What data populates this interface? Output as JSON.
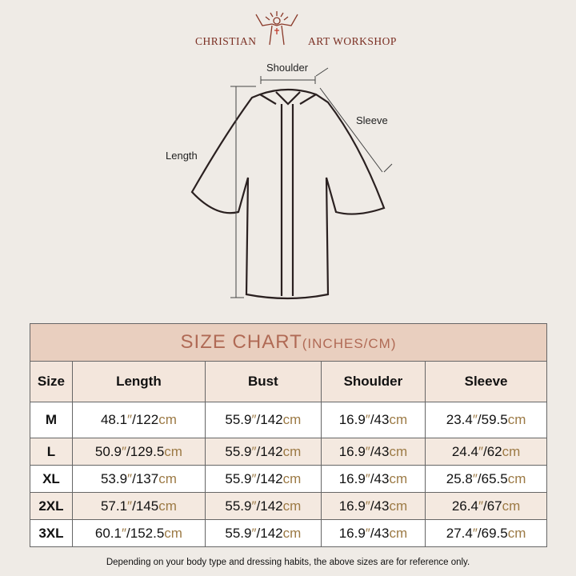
{
  "logo": {
    "left": "CHRISTIAN",
    "right": "ART WORKSHOP"
  },
  "diagram": {
    "shoulder": "Shoulder",
    "sleeve": "Sleeve",
    "length": "Length"
  },
  "table": {
    "title": "SIZE CHART",
    "title_units": "(INCHES/CM)",
    "headers": [
      "Size",
      "Length",
      "Bust",
      "Shoulder",
      "Sleeve"
    ],
    "rows": [
      {
        "size": "M",
        "cells": [
          [
            "48.1",
            "122"
          ],
          [
            "55.9",
            "142"
          ],
          [
            "16.9",
            "43"
          ],
          [
            "23.4",
            "59.5"
          ]
        ]
      },
      {
        "size": "L",
        "cells": [
          [
            "50.9",
            "129.5"
          ],
          [
            "55.9",
            "142"
          ],
          [
            "16.9",
            "43"
          ],
          [
            "24.4",
            "62"
          ]
        ]
      },
      {
        "size": "XL",
        "cells": [
          [
            "53.9",
            "137"
          ],
          [
            "55.9",
            "142"
          ],
          [
            "16.9",
            "43"
          ],
          [
            "25.8",
            "65.5"
          ]
        ]
      },
      {
        "size": "2XL",
        "cells": [
          [
            "57.1",
            "145"
          ],
          [
            "55.9",
            "142"
          ],
          [
            "16.9",
            "43"
          ],
          [
            "26.4",
            "67"
          ]
        ]
      },
      {
        "size": "3XL",
        "cells": [
          [
            "60.1",
            "152.5"
          ],
          [
            "55.9",
            "142"
          ],
          [
            "16.9",
            "43"
          ],
          [
            "27.4",
            "69.5"
          ]
        ]
      }
    ],
    "inch_mark": "″",
    "cm_unit": "cm"
  },
  "note": "Depending on your body type and dressing habits, the above sizes are for reference only.",
  "colors": {
    "accent": "#b06a55",
    "unit": "#9c7a45",
    "logo": "#7a2e22"
  }
}
